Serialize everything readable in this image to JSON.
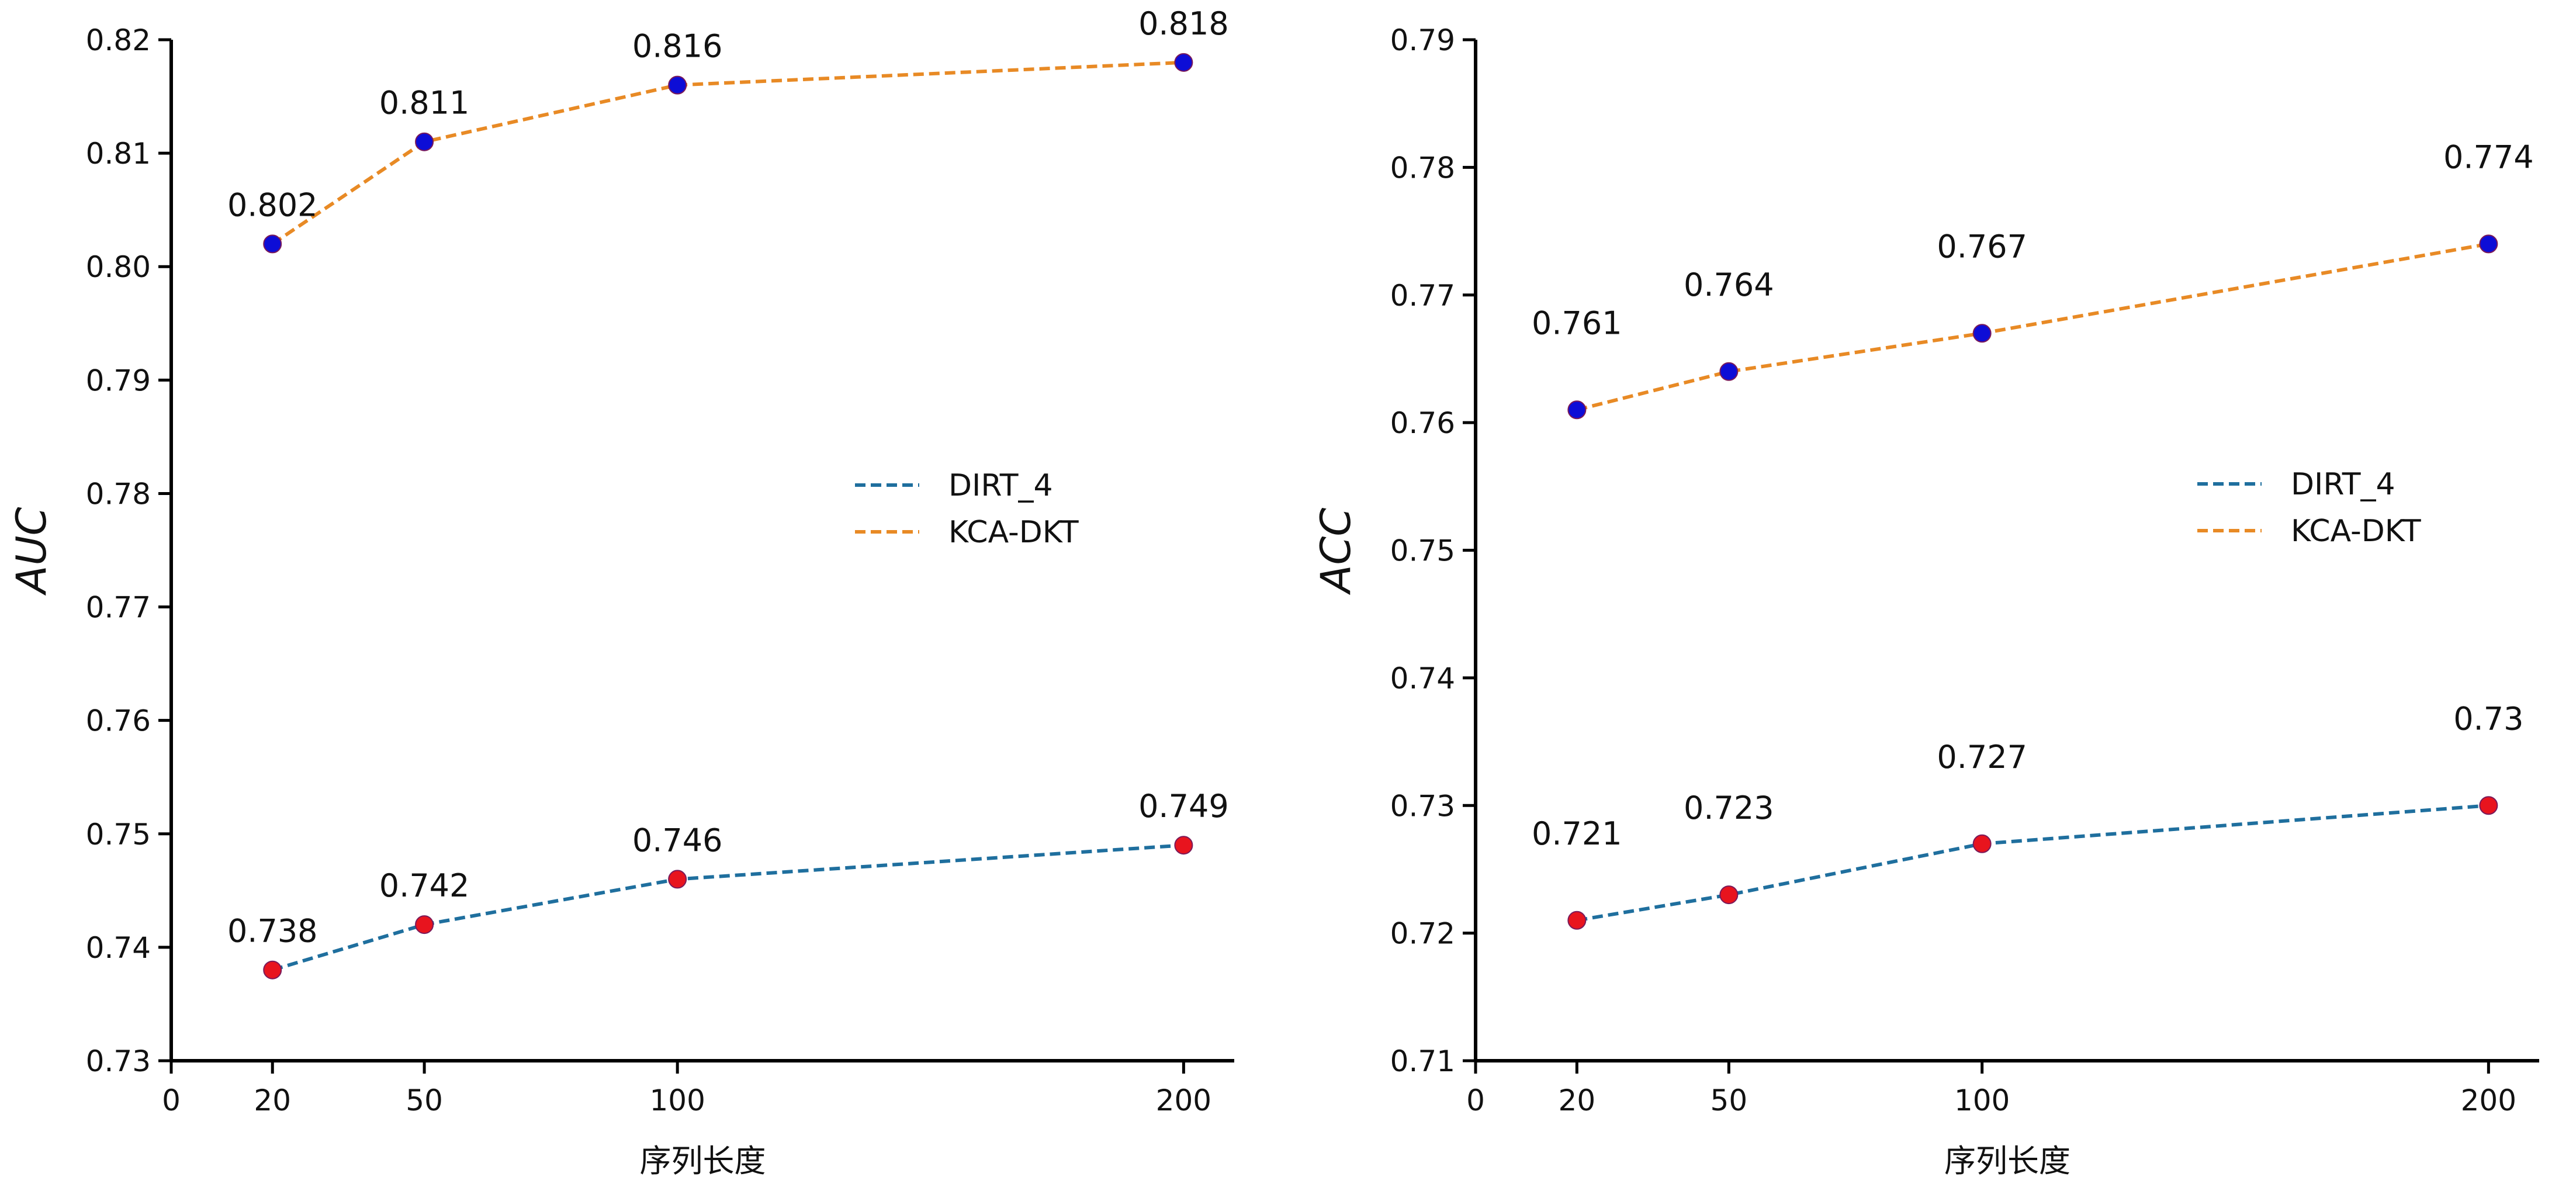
{
  "chart_data": [
    {
      "type": "line",
      "xlabel": "序列长度",
      "ylabel": "AUC",
      "x": [
        20,
        50,
        100,
        200
      ],
      "x_ticks": [
        0,
        20,
        50,
        100,
        200
      ],
      "xlim": [
        0,
        210
      ],
      "ylim": [
        0.73,
        0.82
      ],
      "y_ticks": [
        "0.73",
        "0.74",
        "0.75",
        "0.76",
        "0.77",
        "0.78",
        "0.79",
        "0.80",
        "0.81",
        "0.82"
      ],
      "grid": false,
      "legend": "center-right",
      "series": [
        {
          "name": "DIRT_4",
          "values": [
            0.738,
            0.742,
            0.746,
            0.749
          ],
          "labels": [
            "0.738",
            "0.742",
            "0.746",
            "0.749"
          ],
          "line_color": "#1f6f9e",
          "marker_color": "#e8141e"
        },
        {
          "name": "KCA-DKT",
          "values": [
            0.802,
            0.811,
            0.816,
            0.818
          ],
          "labels": [
            "0.802",
            "0.811",
            "0.816",
            "0.818"
          ],
          "line_color": "#e88a25",
          "marker_color": "#0d0dd6"
        }
      ]
    },
    {
      "type": "line",
      "xlabel": "序列长度",
      "ylabel": "ACC",
      "x": [
        20,
        50,
        100,
        200
      ],
      "x_ticks": [
        0,
        20,
        50,
        100,
        200
      ],
      "xlim": [
        0,
        210
      ],
      "ylim": [
        0.71,
        0.79
      ],
      "y_ticks": [
        "0.71",
        "0.72",
        "0.73",
        "0.74",
        "0.75",
        "0.76",
        "0.77",
        "0.78",
        "0.79"
      ],
      "grid": false,
      "legend": "center-right",
      "series": [
        {
          "name": "DIRT_4",
          "values": [
            0.721,
            0.723,
            0.727,
            0.73
          ],
          "labels": [
            "0.721",
            "0.723",
            "0.727",
            "0.73"
          ],
          "line_color": "#1f6f9e",
          "marker_color": "#e8141e"
        },
        {
          "name": "KCA-DKT",
          "values": [
            0.761,
            0.764,
            0.767,
            0.774
          ],
          "labels": [
            "0.761",
            "0.764",
            "0.767",
            "0.774"
          ],
          "line_color": "#e88a25",
          "marker_color": "#0d0dd6"
        }
      ]
    }
  ]
}
